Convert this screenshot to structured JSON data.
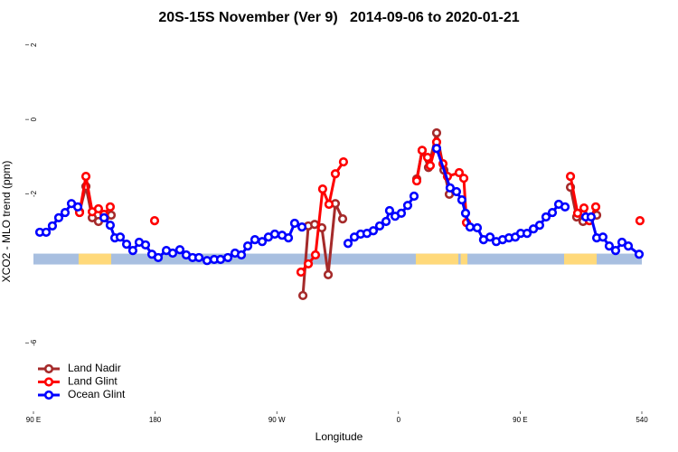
{
  "chart_data": {
    "type": "line",
    "title": "20S-15S November (Ver 9)   2014-09-06 to 2020-01-21",
    "x_label": "Longitude",
    "y_label": "XCO2 - MLO trend (ppm)",
    "xlim": [
      90,
      540
    ],
    "ylim": [
      -7.84,
      2.48
    ],
    "xticks": [
      {
        "value": 90,
        "label": "90 E"
      },
      180,
      {
        "value": 270,
        "label": "90 W"
      },
      {
        "value": 360,
        "label": "0"
      },
      {
        "value": 450,
        "label": "90 E"
      },
      540
    ],
    "yticks": [
      -6,
      -2,
      0,
      2
    ],
    "legend": "bottom-left",
    "surface_band": {
      "y": -3.75,
      "ocean_color": "#a8bfe0",
      "land_color": "#ffd97a",
      "land_ranges": [
        [
          123.4,
          147.5
        ],
        [
          372.8,
          404.3
        ],
        [
          406,
          411
        ],
        [
          482.5,
          506.6
        ]
      ]
    },
    "series": [
      {
        "name": "Land Nadir",
        "color": "#a52a2a",
        "x": [
          124.1,
          128.8,
          133.5,
          138.1,
          142.8,
          147.5,
          null,
          289.3,
          293.3,
          298.0,
          303.3,
          308.0,
          313.3,
          318.7,
          null,
          373.5,
          377.5,
          382.2,
          388.2,
          393.6,
          397.6,
          null,
          487.2,
          491.8,
          496.5,
          501.2,
          506.6
        ],
        "values": [
          -2.48,
          -1.8,
          -2.64,
          -2.74,
          -2.64,
          -2.57,
          null,
          -4.73,
          -2.86,
          -2.82,
          -2.91,
          -4.17,
          -2.26,
          -2.67,
          null,
          -1.6,
          -0.83,
          -1.29,
          -0.36,
          -1.36,
          -2.01,
          null,
          -1.82,
          -2.62,
          -2.74,
          -2.67,
          -2.57
        ]
      },
      {
        "name": "Land Glint",
        "color": "#ff0000",
        "x": [
          124.1,
          128.8,
          133.5,
          138.1,
          142.2,
          146.8,
          null,
          179.6,
          null,
          287.9,
          293.3,
          298.6,
          303.9,
          308.6,
          313.3,
          319.3,
          null,
          373.5,
          377.5,
          381.5,
          383.5,
          388.2,
          392.9,
          396.2,
          404.9,
          408.3,
          410.3,
          null,
          487.2,
          492.5,
          497.2,
          501.2,
          505.9,
          null,
          538.6
        ],
        "values": [
          -2.5,
          -1.53,
          -2.48,
          -2.4,
          -2.55,
          -2.35,
          null,
          -2.72,
          null,
          -4.1,
          -3.88,
          -3.64,
          -1.87,
          -2.28,
          -1.46,
          -1.14,
          null,
          -1.65,
          -0.83,
          -1.02,
          -1.24,
          -0.61,
          -1.19,
          -1.53,
          -1.43,
          -1.58,
          -2.77,
          null,
          -1.53,
          -2.52,
          -2.38,
          -2.72,
          -2.35,
          null,
          -2.72
        ]
      },
      {
        "name": "Ocean Glint",
        "color": "#0000ff",
        "x": [
          94.7,
          99.4,
          104.0,
          108.7,
          113.4,
          118.1,
          122.8,
          null,
          142.2,
          146.8,
          150.2,
          154.2,
          158.9,
          163.5,
          168.2,
          172.9,
          177.6,
          182.3,
          188.3,
          193.0,
          198.3,
          203.0,
          207.7,
          212.4,
          218.4,
          223.7,
          228.4,
          233.8,
          239.1,
          243.8,
          248.5,
          253.8,
          259.2,
          263.8,
          268.5,
          273.9,
          278.6,
          283.2,
          288.6,
          null,
          322.7,
          327.4,
          332.0,
          336.7,
          341.4,
          346.1,
          350.8,
          353.4,
          357.5,
          362.1,
          366.8,
          371.5,
          null,
          388.2,
          398.2,
          402.9,
          406.9,
          409.6,
          412.9,
          418.3,
          422.9,
          427.7,
          432.3,
          437.0,
          441.7,
          446.4,
          450.4,
          455.1,
          459.8,
          464.4,
          469.1,
          473.8,
          478.5,
          483.2,
          null,
          498.5,
          502.5,
          506.6,
          511.2,
          515.9,
          520.6,
          525.3,
          530.0,
          538.0
        ],
        "values": [
          -3.03,
          -3.03,
          -2.86,
          -2.64,
          -2.5,
          -2.26,
          -2.35,
          null,
          -2.64,
          -2.84,
          -3.18,
          -3.16,
          -3.35,
          -3.52,
          -3.3,
          -3.37,
          -3.62,
          -3.71,
          -3.52,
          -3.59,
          -3.5,
          -3.64,
          -3.71,
          -3.71,
          -3.79,
          -3.76,
          -3.76,
          -3.71,
          -3.59,
          -3.64,
          -3.4,
          -3.23,
          -3.28,
          -3.16,
          -3.08,
          -3.11,
          -3.18,
          -2.79,
          -2.89,
          null,
          -3.33,
          -3.16,
          -3.08,
          -3.06,
          -2.99,
          -2.86,
          -2.74,
          -2.45,
          -2.6,
          -2.52,
          -2.31,
          -2.06,
          null,
          -0.78,
          -1.84,
          -1.94,
          -2.16,
          -2.52,
          -2.89,
          -2.91,
          -3.23,
          -3.16,
          -3.28,
          -3.23,
          -3.18,
          -3.16,
          -3.06,
          -3.06,
          -2.94,
          -2.84,
          -2.62,
          -2.5,
          -2.28,
          -2.35,
          null,
          -2.62,
          -2.62,
          -3.18,
          -3.16,
          -3.4,
          -3.52,
          -3.3,
          -3.4,
          -3.62
        ]
      }
    ]
  }
}
